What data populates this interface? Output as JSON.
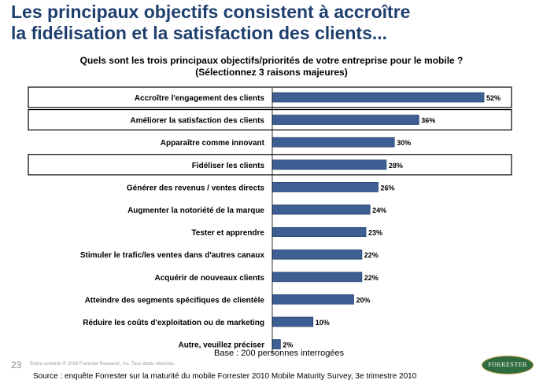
{
  "headline": {
    "line1": "Les principaux objectifs consistent à accroître",
    "line2": "la fidélisation et la satisfaction des clients..."
  },
  "question": {
    "line1": "Quels sont les trois principaux objectifs/priorités de votre entreprise pour le mobile ?",
    "line2": "(Sélectionnez 3 raisons majeures)"
  },
  "colors": {
    "bar": "#3d5f94",
    "bar_dark": "#2a4670",
    "headline": "#1f3f6f"
  },
  "chart_data": {
    "type": "bar",
    "orientation": "horizontal",
    "title": "Quels sont les trois principaux objectifs/priorités de votre entreprise pour le mobile ?",
    "categories": [
      "Accroître l'engagement des clients",
      "Améliorer la satisfaction des clients",
      "Apparaître comme innovant",
      "Fidéliser les clients",
      "Générer des revenus / ventes directs",
      "Augmenter la notoriété de la marque",
      "Tester et apprendre",
      "Stimuler le trafic/les ventes dans d'autres canaux",
      "Acquérir de nouveaux clients",
      "Atteindre des segments spécifiques de clientèle",
      "Réduire les coûts d'exploitation ou de marketing",
      "Autre, veuillez préciser"
    ],
    "values": [
      52,
      36,
      30,
      28,
      26,
      24,
      23,
      22,
      22,
      20,
      10,
      2
    ],
    "value_labels": [
      "52%",
      "36%",
      "30%",
      "28%",
      "26%",
      "24%",
      "23%",
      "22%",
      "22%",
      "20%",
      "10%",
      "2%"
    ],
    "unit": "%",
    "xlim": [
      0,
      55
    ],
    "highlighted_categories": [
      "Accroître l'engagement des clients",
      "Améliorer la satisfaction des clients",
      "Fidéliser les clients"
    ],
    "grid": false
  },
  "footer": {
    "base": "Base : 200 personnes interrogées",
    "page_number": "23",
    "copyright": "Entire contents © 2009  Forrester Research, Inc. Tous droits réservés.",
    "source": "Source : enquête Forrester sur la maturité du mobile Forrester 2010 Mobile Maturity Survey, 3e trimestre 2010",
    "logo": "FORRESTER"
  }
}
